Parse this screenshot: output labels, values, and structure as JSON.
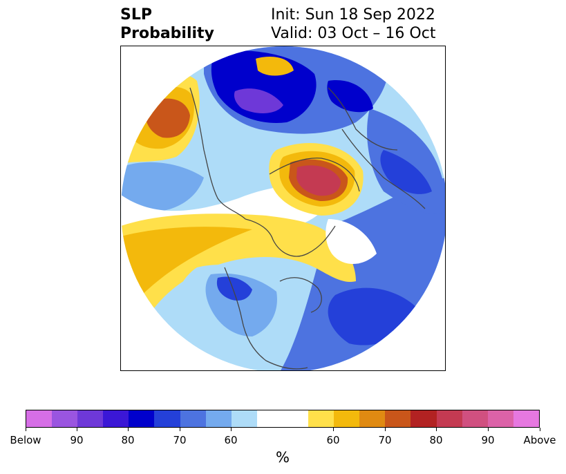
{
  "title": {
    "left_line1": "SLP",
    "left_line2": "Probability",
    "right_line1": "Init: Sun 18 Sep 2022",
    "right_line2": "Valid: 03 Oct – 16 Oct"
  },
  "colorbar": {
    "colors": [
      "#d66ee6",
      "#9a55e0",
      "#6e38d8",
      "#3b17d6",
      "#0000cc",
      "#2440d9",
      "#4d73e0",
      "#74aaee",
      "#aedcf8",
      "#ffffff",
      "#ffe04a",
      "#f3b90c",
      "#e08a12",
      "#c9561a",
      "#b22222",
      "#c43a52",
      "#d05080",
      "#dc62a8",
      "#e678e0"
    ],
    "ticks": [
      "Below",
      "90",
      "80",
      "70",
      "60",
      "60",
      "70",
      "80",
      "90",
      "Above"
    ],
    "unit": "%"
  }
}
